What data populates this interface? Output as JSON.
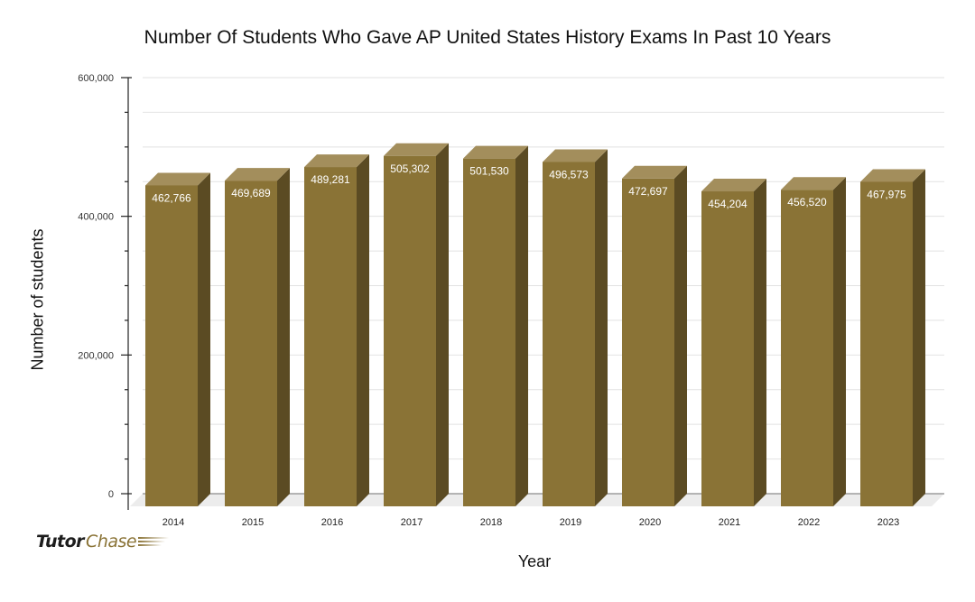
{
  "chart_data": {
    "type": "bar",
    "style": "3d-column",
    "title": "Number Of Students Who Gave AP United States History Exams In Past 10 Years",
    "xlabel": "Year",
    "ylabel": "Number of students",
    "categories": [
      "2014",
      "2015",
      "2016",
      "2017",
      "2018",
      "2019",
      "2020",
      "2021",
      "2022",
      "2023"
    ],
    "values": [
      462766,
      469689,
      489281,
      505302,
      501530,
      496573,
      472697,
      454204,
      456520,
      467975
    ],
    "data_labels": [
      "462,766",
      "469,689",
      "489,281",
      "505,302",
      "501,530",
      "496,573",
      "472,697",
      "454,204",
      "456,520",
      "467,975"
    ],
    "ylim": [
      0,
      600000
    ],
    "yticks": [
      0,
      200000,
      400000,
      600000
    ],
    "ytick_labels": [
      "0",
      "200,000",
      "400,000",
      "600,000"
    ],
    "minor_ticks_per_major": 4,
    "grid": true,
    "legend": null,
    "colors": {
      "bar_front": "#8a7336",
      "bar_top": "#a38e5c",
      "bar_side": "#5b4b23",
      "floor": "#ececec",
      "grid": "#e2e2e2"
    }
  },
  "branding": {
    "logo_part1": "Tutor",
    "logo_part2": "Chase"
  }
}
